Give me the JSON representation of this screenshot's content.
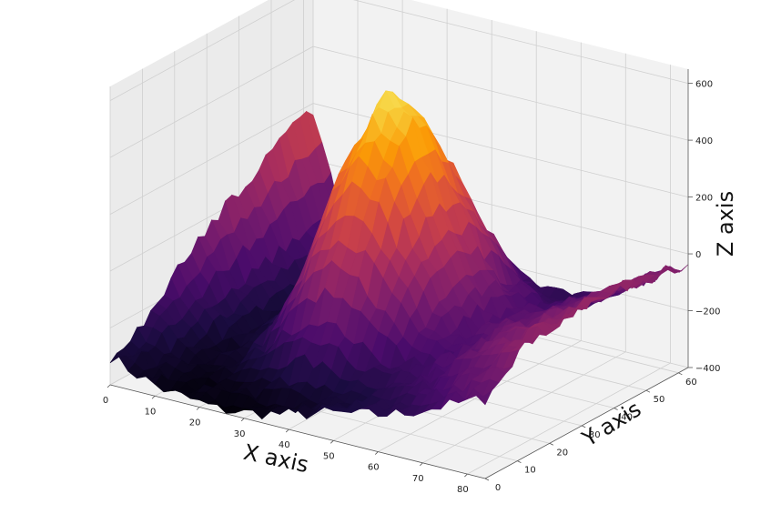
{
  "chart_data": {
    "type": "surface3d",
    "title": "",
    "xlabel": "X axis",
    "ylabel": "Y axis",
    "zlabel": "Z axis",
    "xlim": [
      0,
      84
    ],
    "ylim": [
      0,
      63
    ],
    "zlim": [
      -400,
      650
    ],
    "x_ticks": [
      0,
      10,
      20,
      30,
      40,
      50,
      60,
      70,
      80
    ],
    "y_ticks": [
      0,
      10,
      20,
      30,
      40,
      50,
      60
    ],
    "z_ticks": [
      -400,
      -200,
      0,
      200,
      400,
      600
    ],
    "x_tick_labels": [
      "0",
      "10",
      "20",
      "30",
      "40",
      "50",
      "60",
      "70",
      "80"
    ],
    "y_tick_labels": [
      "0",
      "10",
      "20",
      "30",
      "40",
      "50",
      "60"
    ],
    "z_tick_labels": [
      "−400",
      "−200",
      "0",
      "200",
      "400",
      "600"
    ],
    "colormap": "inferno",
    "colormap_stops": [
      "#000004",
      "#1b0c41",
      "#4a0c6b",
      "#781c6d",
      "#a52c60",
      "#cf4446",
      "#ed6925",
      "#fb9b06",
      "#f7d13d",
      "#fcffa4"
    ],
    "grid": true,
    "pane_color": "#f2f2f2",
    "grid_color": "#cfcfcf",
    "surface_grid_x": [
      0,
      6,
      12,
      18,
      24,
      30,
      36,
      42,
      48,
      54,
      60,
      66,
      72,
      78,
      84
    ],
    "surface_grid_y": [
      0,
      7,
      14,
      21,
      28,
      35,
      42,
      49,
      56,
      63
    ],
    "surface_z": [
      [
        -300,
        -340,
        -370,
        -380,
        -390,
        -380,
        -360,
        -340,
        -310,
        -290,
        -270,
        -240,
        -200,
        -160,
        -120
      ],
      [
        -270,
        -330,
        -360,
        -370,
        -370,
        -350,
        -330,
        -330,
        -310,
        -280,
        -250,
        -200,
        -150,
        -100,
        -50
      ],
      [
        -200,
        -300,
        -350,
        -340,
        -280,
        -200,
        -150,
        -170,
        -220,
        -230,
        -200,
        -150,
        -100,
        -50,
        0
      ],
      [
        -120,
        -260,
        -340,
        -310,
        -160,
        20,
        120,
        90,
        -20,
        -150,
        -180,
        -130,
        -80,
        -30,
        10
      ],
      [
        -50,
        -230,
        -330,
        -280,
        -60,
        250,
        400,
        330,
        120,
        -60,
        -160,
        -120,
        -80,
        -40,
        10
      ],
      [
        0,
        -210,
        -320,
        -260,
        -20,
        360,
        560,
        470,
        200,
        -40,
        -150,
        -130,
        -90,
        -40,
        20
      ],
      [
        50,
        -190,
        -310,
        -240,
        -60,
        320,
        480,
        400,
        160,
        -60,
        -160,
        -140,
        -100,
        -50,
        10
      ],
      [
        100,
        -170,
        -300,
        -250,
        -120,
        150,
        260,
        210,
        60,
        -120,
        -190,
        -160,
        -120,
        -60,
        0
      ],
      [
        150,
        -150,
        -290,
        -270,
        -200,
        -60,
        0,
        -20,
        -110,
        -210,
        -230,
        -200,
        -150,
        -80,
        -20
      ],
      [
        180,
        -140,
        -280,
        -290,
        -260,
        -200,
        -170,
        -180,
        -230,
        -250,
        -240,
        -210,
        -150,
        -90,
        -30
      ]
    ]
  }
}
